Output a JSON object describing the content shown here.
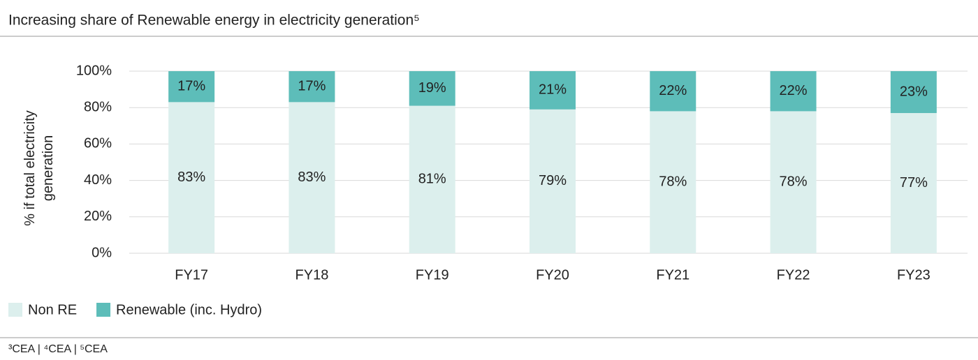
{
  "chart_data": {
    "type": "stacked-bar",
    "title": "Increasing share of Renewable energy in electricity generation⁵",
    "ylabel": "% if total electricity generation",
    "footnote": "³CEA | ⁴CEA | ⁵CEA",
    "categories": [
      "FY17",
      "FY18",
      "FY19",
      "FY20",
      "FY21",
      "FY22",
      "FY23"
    ],
    "series": [
      {
        "name": "Non RE",
        "color": "#dcefed",
        "values": [
          83,
          83,
          81,
          79,
          78,
          78,
          77
        ],
        "value_labels": [
          "83%",
          "83%",
          "81%",
          "79%",
          "78%",
          "78%",
          "77%"
        ]
      },
      {
        "name": "Renewable (inc. Hydro)",
        "color": "#5dbdb9",
        "values": [
          17,
          17,
          19,
          21,
          22,
          22,
          23
        ],
        "value_labels": [
          "17%",
          "17%",
          "19%",
          "21%",
          "22%",
          "22%",
          "23%"
        ]
      }
    ],
    "ylim": [
      0,
      100
    ],
    "yticks": [
      {
        "value": 0,
        "label": "0%"
      },
      {
        "value": 20,
        "label": "20%"
      },
      {
        "value": 40,
        "label": "40%"
      },
      {
        "value": 60,
        "label": "60%"
      },
      {
        "value": 80,
        "label": "80%"
      },
      {
        "value": 100,
        "label": "100%"
      }
    ],
    "grid": true
  }
}
